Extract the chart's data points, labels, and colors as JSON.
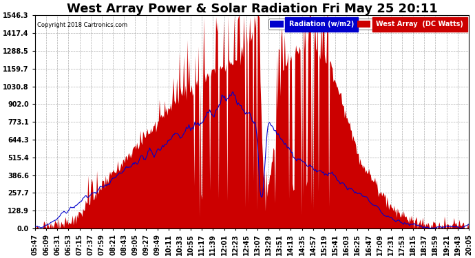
{
  "title": "West Array Power & Solar Radiation Fri May 25 20:11",
  "copyright": "Copyright 2018 Cartronics.com",
  "legend_radiation": "Radiation (w/m2)",
  "legend_west": "West Array  (DC Watts)",
  "radiation_color": "#0000cc",
  "west_fill": "#cc0000",
  "legend_rad_bg": "#0000cc",
  "legend_west_bg": "#cc0000",
  "ymin": 0.0,
  "ymax": 1546.3,
  "yticks": [
    0.0,
    128.9,
    257.7,
    386.6,
    515.4,
    644.3,
    773.1,
    902.0,
    1030.8,
    1159.7,
    1288.5,
    1417.4,
    1546.3
  ],
  "background_color": "#ffffff",
  "plot_bg": "#ffffff",
  "grid_color": "#999999",
  "title_fontsize": 13,
  "tick_fontsize": 7,
  "n_points": 500,
  "xtick_labels": [
    "05:47",
    "06:09",
    "06:31",
    "06:53",
    "07:15",
    "07:37",
    "07:59",
    "08:21",
    "08:43",
    "09:05",
    "09:27",
    "09:49",
    "10:11",
    "10:33",
    "10:55",
    "11:17",
    "11:39",
    "12:01",
    "12:23",
    "12:45",
    "13:07",
    "13:29",
    "13:51",
    "14:13",
    "14:35",
    "14:57",
    "15:19",
    "15:41",
    "16:03",
    "16:25",
    "16:47",
    "17:09",
    "17:31",
    "17:53",
    "18:15",
    "18:37",
    "18:59",
    "19:21",
    "19:43",
    "20:05"
  ]
}
